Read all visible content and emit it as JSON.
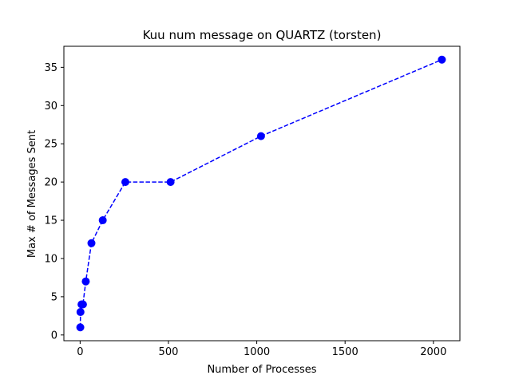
{
  "chart_data": {
    "type": "line",
    "title": "Kuu num message on QUARTZ (torsten)",
    "xlabel": "Number of Processes",
    "ylabel": "Max # of Messages Sent",
    "xlim": [
      -92,
      2150
    ],
    "ylim": [
      -0.75,
      37.75
    ],
    "xticks": [
      0,
      500,
      1000,
      1500,
      2000
    ],
    "yticks": [
      0,
      5,
      10,
      15,
      20,
      25,
      30,
      35
    ],
    "grid": false,
    "series": [
      {
        "color": "#0000ff",
        "line_style": "dashed",
        "marker": "circle",
        "x": [
          1,
          2,
          8,
          16,
          32,
          64,
          128,
          256,
          512,
          1024,
          2048
        ],
        "y": [
          1,
          3,
          4,
          4,
          7,
          12,
          15,
          20,
          20,
          26,
          36
        ]
      }
    ]
  }
}
